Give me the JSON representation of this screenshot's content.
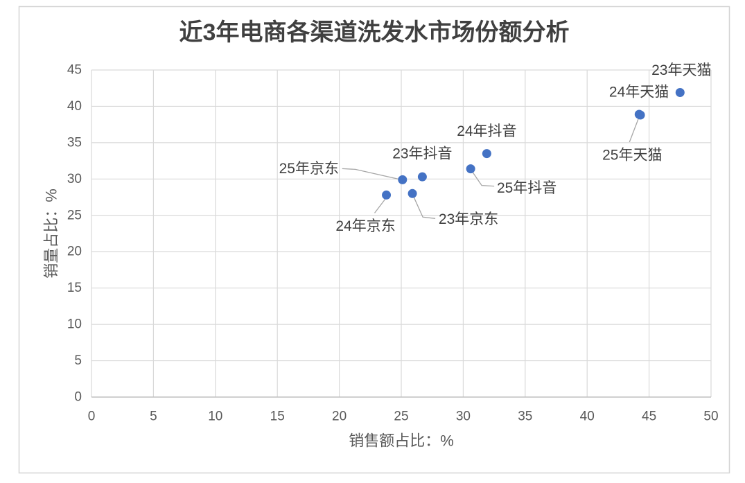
{
  "chart_data": {
    "type": "scatter",
    "title": "近3年电商各渠道洗发水市场份额分析",
    "xlabel": "销售额占比：%",
    "ylabel": "销量占比：%",
    "xlim": [
      0,
      50
    ],
    "ylim": [
      0,
      45
    ],
    "xticks": [
      0,
      5,
      10,
      15,
      20,
      25,
      30,
      35,
      40,
      45,
      50
    ],
    "yticks": [
      0,
      5,
      10,
      15,
      20,
      25,
      30,
      35,
      40,
      45
    ],
    "grid": true,
    "marker_color": "#4472C4",
    "points": [
      {
        "label": "23年天猫",
        "x": 47.5,
        "y": 41.9
      },
      {
        "label": "24年天猫",
        "x": 44.3,
        "y": 38.8
      },
      {
        "label": "25年天猫",
        "x": 44.2,
        "y": 38.9
      },
      {
        "label": "23年抖音",
        "x": 26.7,
        "y": 30.3
      },
      {
        "label": "24年抖音",
        "x": 31.9,
        "y": 33.5
      },
      {
        "label": "25年抖音",
        "x": 30.6,
        "y": 31.4
      },
      {
        "label": "23年京东",
        "x": 25.9,
        "y": 28.0
      },
      {
        "label": "24年京东",
        "x": 23.8,
        "y": 27.8
      },
      {
        "label": "25年京东",
        "x": 25.1,
        "y": 29.9
      }
    ]
  }
}
